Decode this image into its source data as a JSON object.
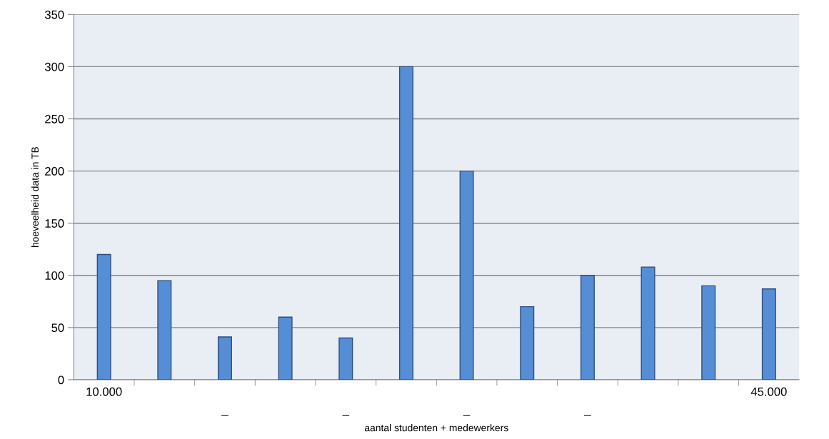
{
  "chart_data": {
    "type": "bar",
    "xlabel": "aantal studenten + medewerkers",
    "ylabel": "hoeveelheid data in TB",
    "categories": [
      "10.000",
      null,
      "_",
      null,
      "_",
      null,
      "_",
      null,
      "_",
      null,
      null,
      "45.000"
    ],
    "values": [
      120,
      95,
      41,
      60,
      40,
      300,
      200,
      70,
      100,
      108,
      90,
      87
    ],
    "color": "#558ed5",
    "ylim": [
      0,
      350
    ],
    "yticks": [
      0,
      50,
      100,
      150,
      200,
      250,
      300,
      350
    ],
    "grid": "y",
    "legend": false
  }
}
